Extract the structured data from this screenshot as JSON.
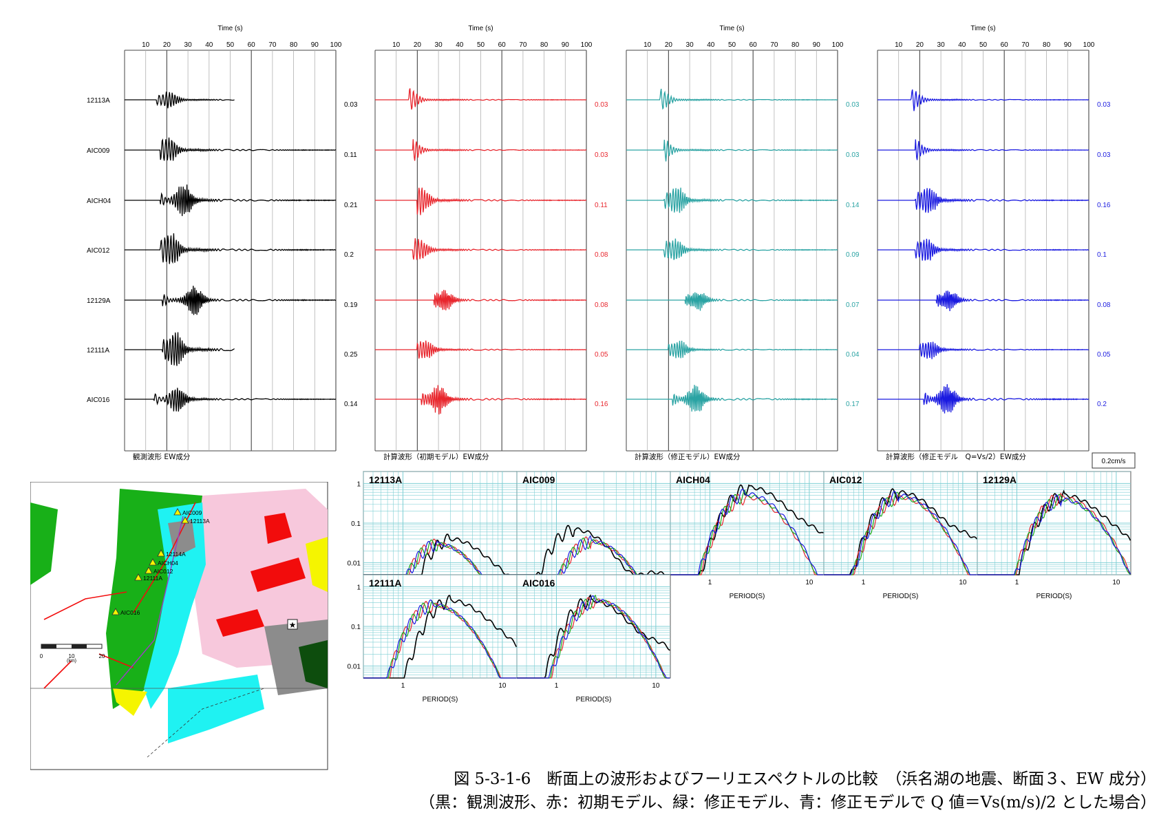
{
  "chart_data": {
    "type": "line",
    "waveform_time_axis": {
      "label": "Time (s)",
      "ticks": [
        "10",
        "20",
        "30",
        "40",
        "50",
        "60",
        "70",
        "80",
        "90",
        "100"
      ],
      "range": [
        0,
        100
      ]
    },
    "stations": [
      "12113A",
      "AIC009",
      "AICH04",
      "AIC012",
      "12129A",
      "12111A",
      "AIC016"
    ],
    "waveform_panels": [
      {
        "name": "観測波形 EW成分",
        "color": "#000000",
        "amplitudes": [
          "0.03",
          "0.11",
          "0.21",
          "0.2",
          "0.19",
          "0.25",
          "0.14"
        ],
        "onsets": [
          15,
          17,
          17,
          17,
          18,
          18,
          14
        ],
        "burst": [
          21,
          21,
          28,
          22,
          33,
          24,
          25
        ],
        "end": [
          52,
          100,
          100,
          100,
          100,
          52,
          100
        ]
      },
      {
        "name": "計算波形（初期モデル）EW成分",
        "color": "#e8262d",
        "amplitudes": [
          "0.03",
          "0.03",
          "0.11",
          "0.08",
          "0.08",
          "0.05",
          "0.16"
        ],
        "onsets": [
          16,
          18,
          20,
          18,
          28,
          20,
          22
        ],
        "burst": [
          17,
          18,
          22,
          21,
          33,
          24,
          30
        ],
        "end": [
          100,
          100,
          100,
          100,
          100,
          100,
          100
        ]
      },
      {
        "name": "計算波形（修正モデル）EW成分",
        "color": "#2aa3a3",
        "amplitudes": [
          "0.03",
          "0.03",
          "0.14",
          "0.09",
          "0.07",
          "0.04",
          "0.17"
        ],
        "onsets": [
          16,
          18,
          18,
          18,
          28,
          20,
          22
        ],
        "burst": [
          17,
          18,
          24,
          23,
          34,
          25,
          33
        ],
        "end": [
          100,
          100,
          100,
          100,
          100,
          100,
          100
        ]
      },
      {
        "name": "計算波形（修正モデル　Q=Vs/2）EW成分",
        "color": "#1a1ae0",
        "amplitudes": [
          "0.03",
          "0.03",
          "0.16",
          "0.1",
          "0.08",
          "0.05",
          "0.2"
        ],
        "onsets": [
          16,
          18,
          18,
          18,
          28,
          20,
          22
        ],
        "burst": [
          17,
          18,
          24,
          23,
          34,
          25,
          33
        ],
        "end": [
          100,
          100,
          100,
          100,
          100,
          100,
          100
        ]
      }
    ],
    "scale_label": "0.2cm/s",
    "spectrum_axis": {
      "xlabel": "PERIOD(S)",
      "xscale": "log",
      "xrange": [
        0.4,
        14
      ],
      "xticks": [
        "1",
        "10"
      ],
      "yscale": "log",
      "yrange": [
        0.005,
        2
      ],
      "yticks": [
        "1",
        "0.1",
        "0.01"
      ]
    },
    "spectrum_series": [
      {
        "name": "観測波形",
        "color": "#000000"
      },
      {
        "name": "初期モデル",
        "color": "#e8262d"
      },
      {
        "name": "修正モデル",
        "color": "#1aaa1a"
      },
      {
        "name": "修正モデルでQ値＝Vs(m/s)/2とした場合",
        "color": "#1a1ae0"
      }
    ],
    "spectrum_panels": [
      {
        "title": "12113A",
        "peaks": {
          "obs": 0.04,
          "red": 0.03,
          "green": 0.03,
          "blue": 0.03
        },
        "peak_period": 2.2,
        "obs_peak_period": 3.0
      },
      {
        "title": "AIC009",
        "peaks": {
          "obs": 0.07,
          "red": 0.035,
          "green": 0.035,
          "blue": 0.035
        },
        "peak_period": 2.2,
        "obs_peak_period": 1.5
      },
      {
        "title": "AICH04",
        "peaks": {
          "obs": 0.8,
          "red": 0.45,
          "green": 0.5,
          "blue": 0.55
        },
        "peak_period": 2.3,
        "obs_peak_period": 2.5
      },
      {
        "title": "AIC012",
        "peaks": {
          "obs": 0.6,
          "red": 0.45,
          "green": 0.45,
          "blue": 0.5
        },
        "peak_period": 2.3,
        "obs_peak_period": 2.3
      },
      {
        "title": "12129A",
        "peaks": {
          "obs": 0.5,
          "red": 0.45,
          "green": 0.4,
          "blue": 0.4
        },
        "peak_period": 2.8,
        "obs_peak_period": 3.0
      },
      {
        "title": "12111A",
        "peaks": {
          "obs": 0.45,
          "red": 0.35,
          "green": 0.35,
          "blue": 0.35
        },
        "peak_period": 2.0,
        "obs_peak_period": 3.0
      },
      {
        "title": "AIC016",
        "peaks": {
          "obs": 0.45,
          "red": 0.45,
          "green": 0.45,
          "blue": 0.45
        },
        "peak_period": 2.5,
        "obs_peak_period": 2.2
      }
    ]
  },
  "map": {
    "station_labels": [
      "AIC009",
      "12113A",
      "12114A",
      "AICH04",
      "AIC012",
      "12111A",
      "AIC016"
    ],
    "scale_ticks": [
      "0",
      "10",
      "20"
    ],
    "scale_unit": "(km)",
    "colors": {
      "pink": "#f7c8dc",
      "green": "#18b018",
      "cyan": "#1ff2f2",
      "red": "#f20c0c",
      "yellow": "#f5f500",
      "gray": "#8c8c8c",
      "darkgreen": "#0d4d0d"
    }
  },
  "caption": {
    "line1": "図 5-3-1-6　断面上の波形およびフーリエスペクトルの比較　（浜名湖の地震、断面３、EW 成分）",
    "line2": "（黒：観測波形、赤：初期モデル、緑：修正モデル、青：修正モデルで Q 値＝Vs(m/s)/2 とした場合）"
  }
}
